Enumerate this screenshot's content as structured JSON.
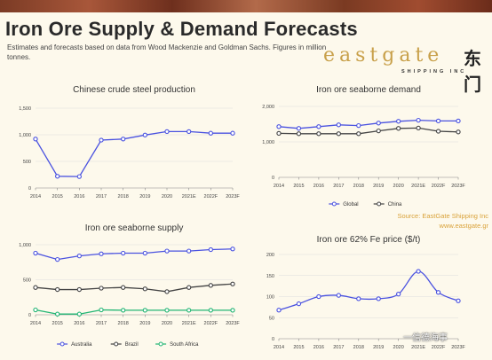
{
  "header": {
    "title": "Iron Ore Supply & Demand Forecasts",
    "subtitle": "Estimates and forecasts based on data from Wood Mackenzie and Goldman Sachs. Figures in million tonnes."
  },
  "logo": {
    "main": "eastgate",
    "sub": "SHIPPING INC",
    "cn": "东门"
  },
  "source": {
    "line1": "Source: EastGate Shipping Inc",
    "line2": "www.eastgate.gr"
  },
  "watermark": "一信德海事",
  "colors": {
    "blue": "#4a52e0",
    "dark": "#444444",
    "green": "#22b573",
    "gold": "#d9a23a"
  },
  "chart_data": [
    {
      "type": "line",
      "title": "Chinese crude steel production",
      "categories": [
        "2014",
        "2015",
        "2016",
        "2017",
        "2018",
        "2019",
        "2020",
        "2021E",
        "2022F",
        "2023F"
      ],
      "ylim": [
        0,
        1500
      ],
      "yticks": [
        "0",
        "500",
        "1,000",
        "1,500"
      ],
      "ytick_values": [
        0,
        500,
        1000,
        1500
      ],
      "series": [
        {
          "name": "",
          "color": "#4a52e0",
          "values": [
            920,
            220,
            215,
            900,
            920,
            995,
            1060,
            1060,
            1030,
            1030
          ]
        }
      ]
    },
    {
      "type": "line",
      "title": "Iron ore seaborne demand",
      "categories": [
        "2014",
        "2015",
        "2016",
        "2017",
        "2018",
        "2019",
        "2020",
        "2021E",
        "2022F",
        "2023F"
      ],
      "ylim": [
        0,
        2000
      ],
      "yticks": [
        "0",
        "1,000",
        "2,000"
      ],
      "ytick_values": [
        0,
        1000,
        2000
      ],
      "legend": "bottom",
      "series": [
        {
          "name": "Global",
          "color": "#4a52e0",
          "values": [
            1430,
            1380,
            1430,
            1480,
            1460,
            1530,
            1580,
            1610,
            1590,
            1590
          ]
        },
        {
          "name": "China",
          "color": "#444444",
          "values": [
            1240,
            1230,
            1230,
            1230,
            1230,
            1310,
            1380,
            1390,
            1300,
            1280
          ]
        }
      ]
    },
    {
      "type": "line",
      "title": "Iron ore seaborne supply",
      "categories": [
        "2014",
        "2015",
        "2016",
        "2017",
        "2018",
        "2019",
        "2020",
        "2021E",
        "2022F",
        "2023F"
      ],
      "ylim": [
        0,
        1000
      ],
      "yticks": [
        "0",
        "500",
        "1,000"
      ],
      "ytick_values": [
        0,
        500,
        1000
      ],
      "legend": "bottom",
      "series": [
        {
          "name": "Australia",
          "color": "#4a52e0",
          "values": [
            880,
            790,
            840,
            870,
            880,
            880,
            910,
            910,
            930,
            940
          ]
        },
        {
          "name": "Brazil",
          "color": "#444444",
          "values": [
            390,
            360,
            360,
            380,
            390,
            370,
            330,
            390,
            420,
            440
          ]
        },
        {
          "name": "South Africa",
          "color": "#22b573",
          "values": [
            70,
            10,
            10,
            70,
            65,
            65,
            65,
            65,
            65,
            65
          ]
        }
      ]
    },
    {
      "type": "line",
      "title": "Iron ore 62% Fe price ($/t)",
      "categories": [
        "2014",
        "2015",
        "2016",
        "2017",
        "2018",
        "2019",
        "2020",
        "2021E",
        "2022F",
        "2023F"
      ],
      "ylim": [
        0,
        200
      ],
      "yticks": [
        "0",
        "50",
        "100",
        "150",
        "200"
      ],
      "ytick_values": [
        0,
        50,
        100,
        150,
        200
      ],
      "smooth": true,
      "series": [
        {
          "name": "",
          "color": "#4a52e0",
          "values": [
            68,
            83,
            100,
            103,
            95,
            95,
            106,
            160,
            110,
            90
          ]
        }
      ]
    }
  ]
}
